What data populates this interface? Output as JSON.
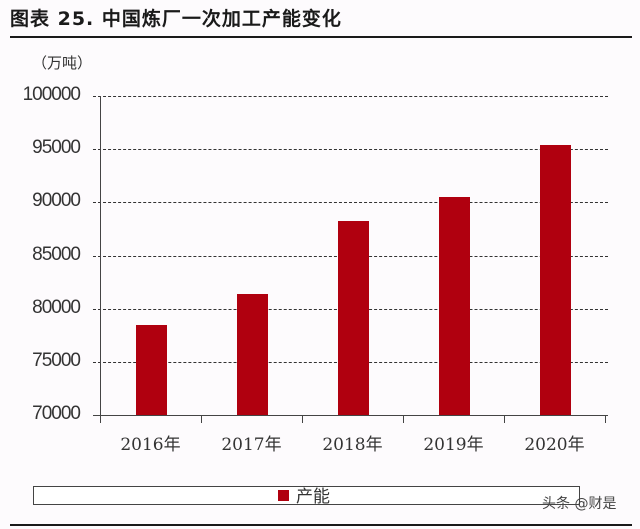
{
  "header": {
    "title": "图表 25. 中国炼厂一次加工产能变化",
    "unit": "（万吨）"
  },
  "colors": {
    "bar": "#b0000f",
    "grid": "#333333"
  },
  "chart_data": {
    "type": "bar",
    "title": "图表 25. 中国炼厂一次加工产能变化",
    "xlabel": "",
    "ylabel": "万吨",
    "categories": [
      "2016年",
      "2017年",
      "2018年",
      "2019年",
      "2020年"
    ],
    "series": [
      {
        "name": "产能",
        "values": [
          78500,
          81400,
          88200,
          90500,
          95400
        ]
      }
    ],
    "ylim": [
      70000,
      100000
    ],
    "yticks": [
      "100000",
      "95000",
      "90000",
      "85000",
      "80000",
      "75000",
      "70000"
    ],
    "grid": true,
    "legend_position": "bottom"
  },
  "legend": {
    "label": "产能"
  },
  "watermark": "头条 @财是"
}
